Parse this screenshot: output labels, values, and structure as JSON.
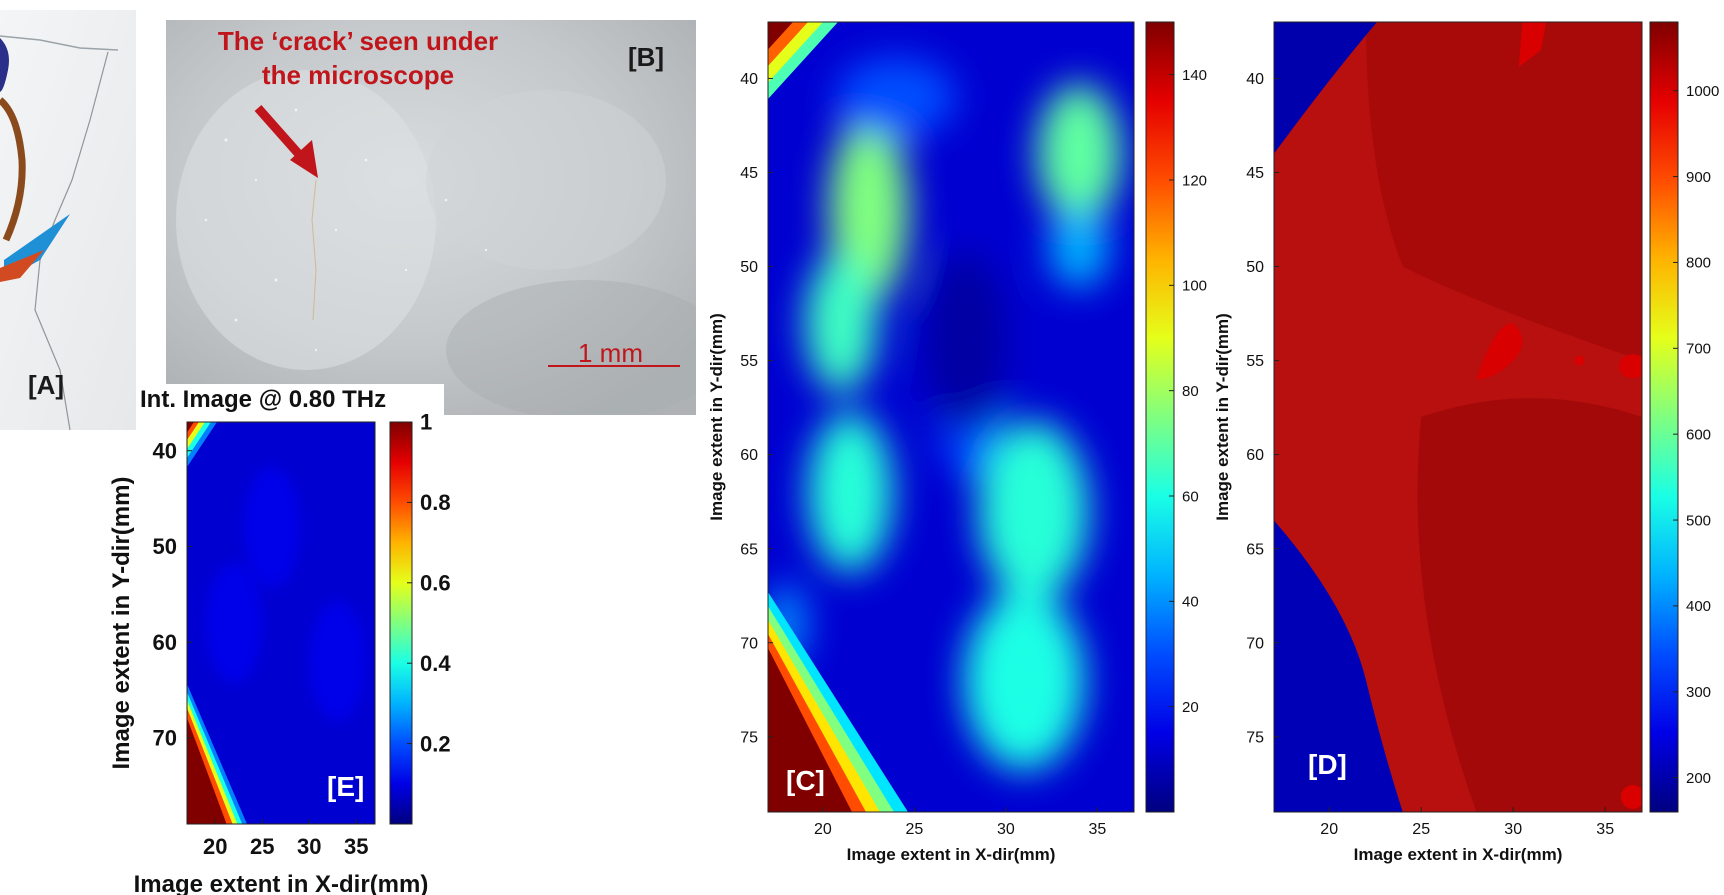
{
  "panel_a": {
    "label": "[A]"
  },
  "panel_b": {
    "label": "[B]",
    "annotation_line1": "The ‘crack’ seen under",
    "annotation_line2": "the microscope",
    "scale_bar": "1 mm"
  },
  "colors": {
    "annotation": "#c0151b",
    "panel_label_dark": "#1a1a1a",
    "panel_label_light": "#ffffff"
  },
  "chart_data": [
    {
      "id": "E",
      "type": "heatmap",
      "title": "Int. Image @ 0.80 THz",
      "panel_label": "[E]",
      "xlabel": "Image extent in X-dir(mm)",
      "ylabel": "Image extent in Y-dir(mm)",
      "xlim": [
        17,
        37
      ],
      "ylim": [
        37,
        79
      ],
      "y_reversed": true,
      "xticks": [
        20,
        25,
        30,
        35
      ],
      "yticks": [
        40,
        50,
        60,
        70
      ],
      "colorbar": {
        "min": 0,
        "max": 1,
        "ticks": [
          "0.2",
          "0.4",
          "0.6",
          "0.8",
          "1"
        ],
        "tick_values": [
          0.2,
          0.4,
          0.6,
          0.8,
          1
        ]
      },
      "colormap": "jet",
      "features": [
        {
          "x": 17,
          "y": 37,
          "value": 1.0
        },
        {
          "x": 17,
          "y": 79,
          "value": 1.0
        }
      ],
      "background_value": 0.08
    },
    {
      "id": "C",
      "type": "heatmap",
      "panel_label": "[C]",
      "xlabel": "Image extent in X-dir(mm)",
      "ylabel": "Image extent in Y-dir(mm)",
      "xlim": [
        17,
        37
      ],
      "ylim": [
        37,
        79
      ],
      "y_reversed": true,
      "xticks": [
        20,
        25,
        30,
        35
      ],
      "yticks": [
        40,
        45,
        50,
        55,
        60,
        65,
        70,
        75
      ],
      "colorbar": {
        "min": 0,
        "max": 150,
        "ticks": [
          "20",
          "40",
          "60",
          "80",
          "100",
          "120",
          "140"
        ],
        "tick_values": [
          20,
          40,
          60,
          80,
          100,
          120,
          140
        ]
      },
      "colormap": "jet",
      "features": [
        {
          "x": 22.5,
          "y": 46,
          "value": 75
        },
        {
          "x": 21,
          "y": 52,
          "value": 68
        },
        {
          "x": 21.5,
          "y": 62,
          "value": 65
        },
        {
          "x": 34,
          "y": 44,
          "value": 70
        },
        {
          "x": 32,
          "y": 63,
          "value": 68
        },
        {
          "x": 31,
          "y": 71,
          "value": 65
        },
        {
          "x": 17.5,
          "y": 76,
          "value": 150
        },
        {
          "x": 17.5,
          "y": 37.5,
          "value": 150
        }
      ],
      "background_value": 12
    },
    {
      "id": "D",
      "type": "heatmap",
      "panel_label": "[D]",
      "xlabel": "Image extent in X-dir(mm)",
      "ylabel": "Image extent in Y-dir(mm)",
      "xlim": [
        17,
        37
      ],
      "ylim": [
        37,
        79
      ],
      "y_reversed": true,
      "xticks": [
        20,
        25,
        30,
        35
      ],
      "yticks": [
        40,
        45,
        50,
        55,
        60,
        65,
        70,
        75
      ],
      "colorbar": {
        "min": 160,
        "max": 1080,
        "ticks": [
          "200",
          "300",
          "400",
          "500",
          "600",
          "700",
          "800",
          "900",
          "1000"
        ],
        "tick_values": [
          200,
          300,
          400,
          500,
          600,
          700,
          800,
          900,
          1000
        ]
      },
      "colormap": "jet",
      "regions": [
        {
          "name": "main",
          "value": 1040
        },
        {
          "name": "top-left",
          "value": 200
        },
        {
          "name": "bottom-left",
          "value": 210
        },
        {
          "name": "spot",
          "value": 1000
        }
      ]
    }
  ]
}
